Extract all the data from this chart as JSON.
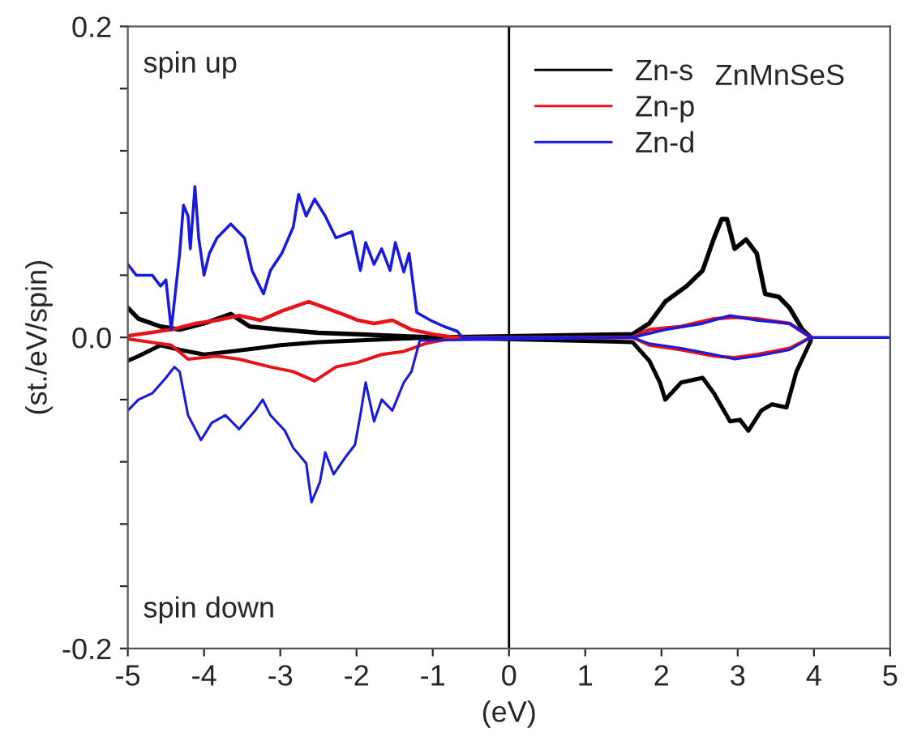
{
  "chart_data": {
    "type": "line",
    "xlabel": "(eV)",
    "ylabel": "(st./eV/spin)",
    "xlim": [
      -5,
      5
    ],
    "xticks": [
      -5,
      -4,
      -3,
      -2,
      -1,
      0,
      1,
      2,
      3,
      4,
      5
    ],
    "ylim": [
      -0.2,
      0.2
    ],
    "yticks": [
      {
        "value": -0.2,
        "label": "-0.2"
      },
      {
        "value": -0.16,
        "label": null
      },
      {
        "value": -0.12,
        "label": null
      },
      {
        "value": -0.08,
        "label": null
      },
      {
        "value": -0.04,
        "label": null
      },
      {
        "value": 0,
        "label": "0.0"
      },
      {
        "value": 0.04,
        "label": null
      },
      {
        "value": 0.08,
        "label": null
      },
      {
        "value": 0.12,
        "label": null
      },
      {
        "value": 0.16,
        "label": null
      },
      {
        "value": 0.2,
        "label": "0.2"
      }
    ],
    "grid": false,
    "legend": "top right",
    "marker": "none",
    "line_style": "solid",
    "annotations": [
      "spin up",
      "spin down",
      "ZnMnSeS"
    ],
    "ref_lines": [
      {
        "axis": "x",
        "value": 0,
        "color": "#000000"
      }
    ],
    "series": [
      {
        "name": "Zn-s",
        "color": "#000000",
        "x": [
          -5,
          -4.86,
          -4.57,
          -4.32,
          -4,
          -3.65,
          -3.4,
          -3,
          -2.5,
          -2,
          -1.5,
          -1,
          1.62,
          1.84,
          2.05,
          2.33,
          2.54,
          2.69,
          2.79,
          2.86,
          2.96,
          3.11,
          3.25,
          3.36,
          3.54,
          3.68,
          3.85,
          3.96
        ],
        "values": [
          0.019,
          0.012,
          0.007,
          0.005,
          0.009,
          0.015,
          0.007,
          0.005,
          0.003,
          0.002,
          0.001,
          0,
          0.002,
          0.009,
          0.023,
          0.033,
          0.043,
          0.064,
          0.076,
          0.076,
          0.057,
          0.063,
          0.054,
          0.028,
          0.026,
          0.019,
          0.005,
          0
        ]
      },
      {
        "color": "#000000",
        "x": [
          -5,
          -4.86,
          -4.57,
          -4.32,
          -4,
          -3.65,
          -3.3,
          -3,
          -2.5,
          -2,
          -1.5,
          -1,
          1.62,
          1.84,
          1.98,
          2.05,
          2.26,
          2.54,
          2.69,
          2.9,
          3.03,
          3.14,
          3.31,
          3.45,
          3.64,
          3.77,
          3.96
        ],
        "values": [
          -0.015,
          -0.012,
          -0.005,
          -0.008,
          -0.011,
          -0.009,
          -0.007,
          -0.005,
          -0.003,
          -0.002,
          -0.001,
          0,
          -0.003,
          -0.015,
          -0.029,
          -0.04,
          -0.029,
          -0.026,
          -0.036,
          -0.054,
          -0.053,
          -0.06,
          -0.047,
          -0.043,
          -0.045,
          -0.022,
          -0.002
        ]
      },
      {
        "name": "Zn-p",
        "color": "#e8141b",
        "x": [
          -5,
          -4.43,
          -4.11,
          -3.83,
          -3.54,
          -3.26,
          -2.98,
          -2.63,
          -2.41,
          -2.13,
          -1.98,
          -1.77,
          -1.53,
          -1.28,
          -1,
          -0.7,
          1.62,
          1.84,
          2.26,
          2.69,
          2.96,
          3.25,
          3.68,
          3.96
        ],
        "values": [
          0.001,
          0.005,
          0.009,
          0.011,
          0.014,
          0.011,
          0.017,
          0.023,
          0.019,
          0.014,
          0.011,
          0.009,
          0.011,
          0.005,
          0.002,
          0,
          0,
          0.005,
          0.007,
          0.012,
          0.013,
          0.012,
          0.009,
          0
        ]
      },
      {
        "color": "#e8141b",
        "x": [
          -5,
          -4.43,
          -4.21,
          -3.83,
          -3.54,
          -3.13,
          -2.83,
          -2.55,
          -2.27,
          -1.98,
          -1.67,
          -1.38,
          -1.1,
          -0.7,
          1.62,
          1.84,
          2.26,
          2.69,
          2.96,
          3.25,
          3.68,
          3.96
        ],
        "values": [
          -0.001,
          -0.005,
          -0.014,
          -0.012,
          -0.014,
          -0.019,
          -0.022,
          -0.028,
          -0.019,
          -0.016,
          -0.011,
          -0.009,
          -0.004,
          0,
          0,
          -0.005,
          -0.008,
          -0.012,
          -0.013,
          -0.011,
          -0.007,
          0
        ]
      },
      {
        "name": "Zn-d",
        "color": "#1a1adb",
        "x": [
          -5,
          -4.89,
          -4.68,
          -4.57,
          -4.5,
          -4.43,
          -4.32,
          -4.27,
          -4.21,
          -4.18,
          -4.12,
          -4.07,
          -4,
          -3.93,
          -3.83,
          -3.65,
          -3.47,
          -3.37,
          -3.22,
          -3.13,
          -2.98,
          -2.83,
          -2.76,
          -2.66,
          -2.55,
          -2.41,
          -2.27,
          -2.06,
          -1.95,
          -1.88,
          -1.77,
          -1.67,
          -1.56,
          -1.49,
          -1.38,
          -1.31,
          -1.21,
          -1.03,
          -0.85,
          -0.68,
          -0.61,
          1.62,
          2.05,
          2.54,
          2.9,
          3.25,
          3.68,
          3.96,
          5
        ],
        "values": [
          0.047,
          0.04,
          0.04,
          0.033,
          0.037,
          0.005,
          0.054,
          0.085,
          0.078,
          0.057,
          0.097,
          0.064,
          0.04,
          0.054,
          0.064,
          0.073,
          0.064,
          0.043,
          0.028,
          0.043,
          0.054,
          0.071,
          0.092,
          0.078,
          0.089,
          0.078,
          0.064,
          0.068,
          0.043,
          0.061,
          0.047,
          0.057,
          0.043,
          0.061,
          0.042,
          0.054,
          0.016,
          0.011,
          0.007,
          0.004,
          0,
          0,
          0.005,
          0.009,
          0.014,
          0.011,
          0.009,
          0,
          0
        ]
      },
      {
        "color": "#1a1adb",
        "x": [
          -5,
          -4.86,
          -4.68,
          -4.5,
          -4.39,
          -4.32,
          -4.21,
          -4.04,
          -3.9,
          -3.72,
          -3.54,
          -3.33,
          -3.23,
          -3.13,
          -2.94,
          -2.83,
          -2.66,
          -2.59,
          -2.48,
          -2.41,
          -2.3,
          -2.16,
          -2.02,
          -1.95,
          -1.88,
          -1.77,
          -1.67,
          -1.53,
          -1.38,
          -1.28,
          -1.17,
          1.62,
          1.84,
          2.26,
          2.69,
          2.96,
          3.25,
          3.68,
          3.96
        ],
        "values": [
          -0.047,
          -0.04,
          -0.036,
          -0.026,
          -0.019,
          -0.022,
          -0.05,
          -0.066,
          -0.055,
          -0.05,
          -0.059,
          -0.047,
          -0.04,
          -0.05,
          -0.06,
          -0.071,
          -0.081,
          -0.106,
          -0.093,
          -0.074,
          -0.088,
          -0.078,
          -0.069,
          -0.05,
          -0.029,
          -0.054,
          -0.04,
          -0.047,
          -0.029,
          -0.022,
          -0.002,
          0,
          -0.004,
          -0.007,
          -0.011,
          -0.014,
          -0.012,
          -0.008,
          0
        ]
      }
    ]
  }
}
